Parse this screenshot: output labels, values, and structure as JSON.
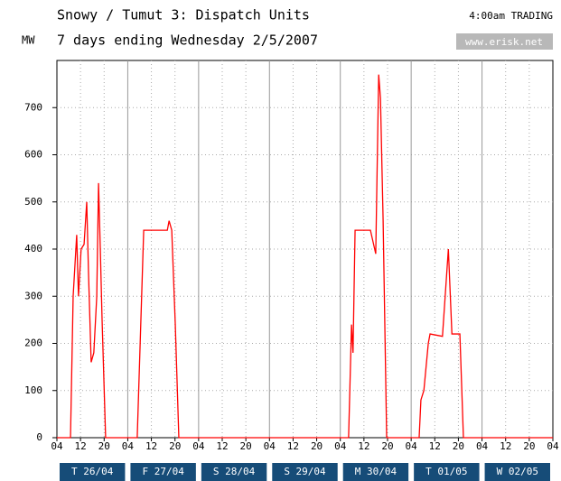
{
  "chart_data": {
    "type": "line",
    "title": "Snowy / Tumut 3: Dispatch Units",
    "subtitle": "7 days ending Wednesday 2/5/2007",
    "y_label": "MW",
    "annotation": "4:00am TRADING",
    "source": "www.erisk.net",
    "color": "#ff0000",
    "grid": true,
    "categories": [
      "T 26/04",
      "F 27/04",
      "S 28/04",
      "S 29/04",
      "M 30/04",
      "T 01/05",
      "W 02/05"
    ],
    "x": [
      0,
      4.6,
      5.5,
      6.7,
      7.3,
      8.2,
      9.2,
      10.1,
      10.7,
      11.6,
      12.5,
      13.5,
      14.1,
      14.7,
      15.3,
      16.5,
      27.2,
      29.4,
      37.4,
      38,
      38.9,
      40.1,
      41.3,
      98.8,
      99.8,
      100.3,
      101,
      106.2,
      108,
      109,
      109.6,
      110.5,
      111.7,
      122.7,
      123.3,
      124.3,
      125.8,
      126.4,
      130.6,
      132.6,
      133.8,
      136.5,
      137.7,
      168
    ],
    "values": [
      0,
      0,
      300,
      430,
      300,
      400,
      410,
      500,
      350,
      160,
      180,
      300,
      540,
      400,
      250,
      0,
      0,
      440,
      440,
      460,
      440,
      240,
      0,
      0,
      240,
      180,
      440,
      440,
      390,
      770,
      720,
      460,
      0,
      0,
      80,
      100,
      200,
      220,
      215,
      400,
      220,
      220,
      0,
      0
    ],
    "xlim": [
      0,
      168
    ],
    "xticks": [
      {
        "value": 0,
        "label": "04"
      },
      {
        "value": 8,
        "label": "12"
      },
      {
        "value": 16,
        "label": "20"
      },
      {
        "value": 24,
        "label": "04"
      },
      {
        "value": 32,
        "label": "12"
      },
      {
        "value": 40,
        "label": "20"
      },
      {
        "value": 48,
        "label": "04"
      },
      {
        "value": 56,
        "label": "12"
      },
      {
        "value": 64,
        "label": "20"
      },
      {
        "value": 72,
        "label": "04"
      },
      {
        "value": 80,
        "label": "12"
      },
      {
        "value": 88,
        "label": "20"
      },
      {
        "value": 96,
        "label": "04"
      },
      {
        "value": 104,
        "label": "12"
      },
      {
        "value": 112,
        "label": "20"
      },
      {
        "value": 120,
        "label": "04"
      },
      {
        "value": 128,
        "label": "12"
      },
      {
        "value": 136,
        "label": "20"
      },
      {
        "value": 144,
        "label": "04"
      },
      {
        "value": 152,
        "label": "12"
      },
      {
        "value": 160,
        "label": "20"
      },
      {
        "value": 168,
        "label": "04"
      }
    ],
    "ylim": [
      0,
      800
    ],
    "yticks": [
      0,
      100,
      200,
      300,
      400,
      500,
      600,
      700
    ]
  }
}
